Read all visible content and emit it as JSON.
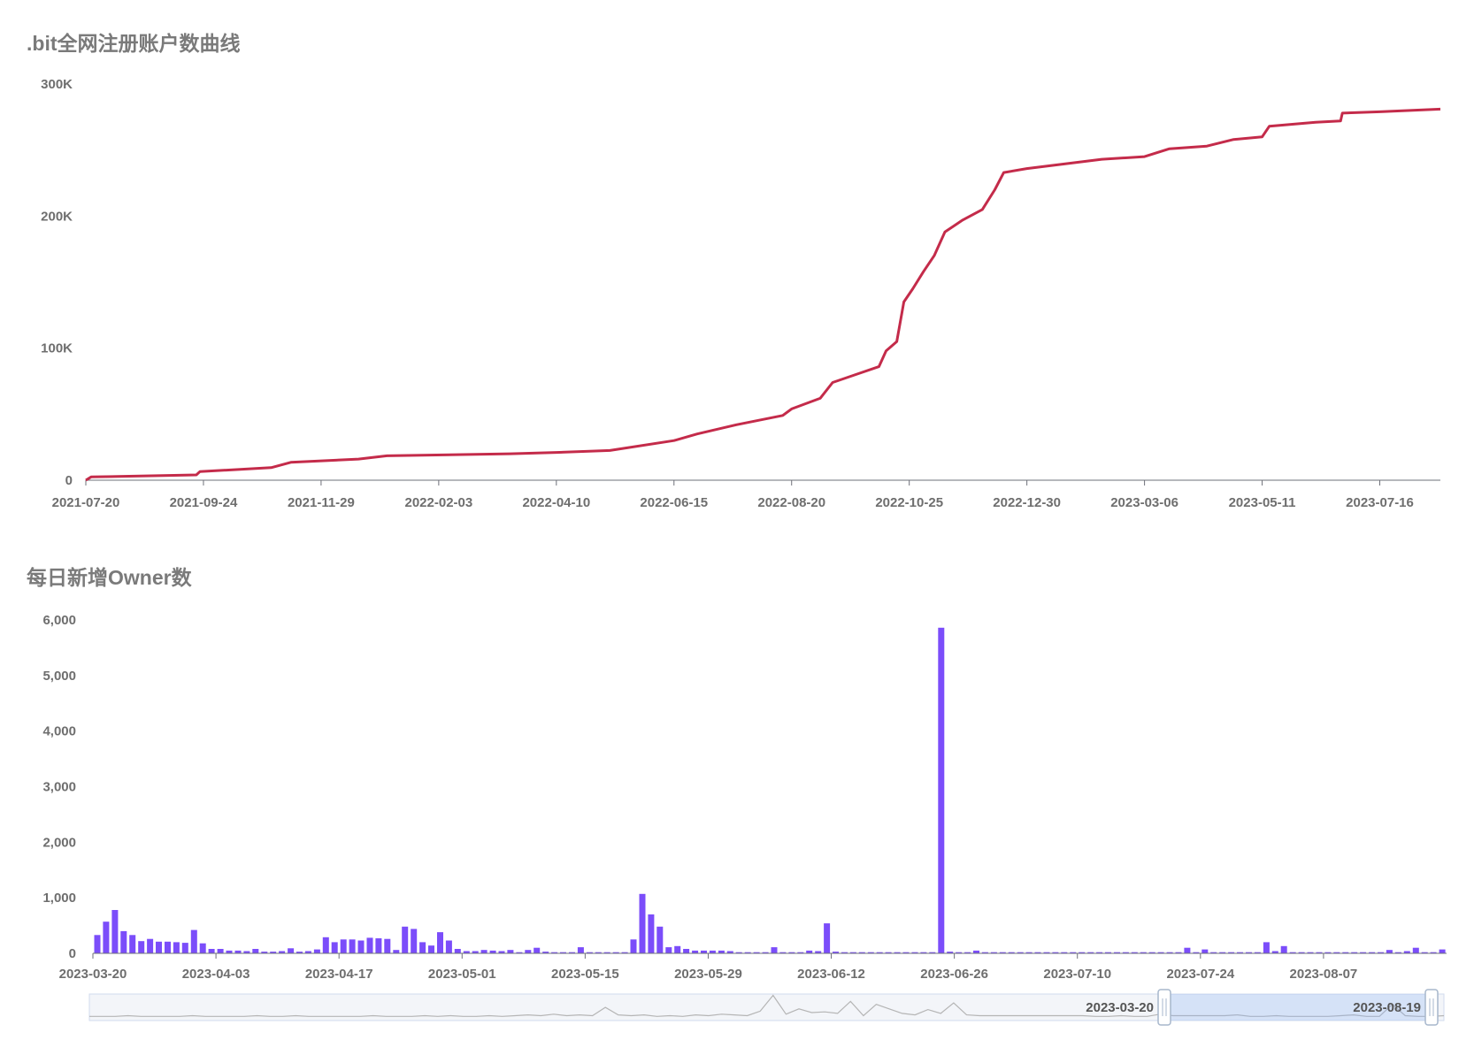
{
  "chart_data": [
    {
      "type": "line",
      "title": ".bit全网注册账户数曲线",
      "color": "#c42b4a",
      "ylim": [
        0,
        300000
      ],
      "y_ticks": [
        0,
        100000,
        200000,
        300000
      ],
      "y_tick_labels": [
        "0",
        "100K",
        "200K",
        "300K"
      ],
      "x_range": [
        "2021-07-20",
        "2023-08-19"
      ],
      "x_tick_labels": [
        "2021-07-20",
        "2021-09-24",
        "2021-11-29",
        "2022-02-03",
        "2022-04-10",
        "2022-06-15",
        "2022-08-20",
        "2022-10-25",
        "2022-12-30",
        "2023-03-06",
        "2023-05-11",
        "2023-07-16"
      ],
      "grid": false,
      "points": [
        {
          "x": "2021-07-20",
          "y": 0
        },
        {
          "x": "2021-07-23",
          "y": 2500
        },
        {
          "x": "2021-09-20",
          "y": 4000
        },
        {
          "x": "2021-09-22",
          "y": 6500
        },
        {
          "x": "2021-11-01",
          "y": 9500
        },
        {
          "x": "2021-11-12",
          "y": 13500
        },
        {
          "x": "2021-12-20",
          "y": 16000
        },
        {
          "x": "2022-01-05",
          "y": 18500
        },
        {
          "x": "2022-03-15",
          "y": 20000
        },
        {
          "x": "2022-04-10",
          "y": 21000
        },
        {
          "x": "2022-05-10",
          "y": 22500
        },
        {
          "x": "2022-06-15",
          "y": 30000
        },
        {
          "x": "2022-06-28",
          "y": 35000
        },
        {
          "x": "2022-07-20",
          "y": 42000
        },
        {
          "x": "2022-08-15",
          "y": 49000
        },
        {
          "x": "2022-08-20",
          "y": 54000
        },
        {
          "x": "2022-09-05",
          "y": 62000
        },
        {
          "x": "2022-09-12",
          "y": 74000
        },
        {
          "x": "2022-09-25",
          "y": 80000
        },
        {
          "x": "2022-10-08",
          "y": 86000
        },
        {
          "x": "2022-10-12",
          "y": 98000
        },
        {
          "x": "2022-10-18",
          "y": 105000
        },
        {
          "x": "2022-10-22",
          "y": 135000
        },
        {
          "x": "2022-10-27",
          "y": 145000
        },
        {
          "x": "2022-11-02",
          "y": 158000
        },
        {
          "x": "2022-11-08",
          "y": 170000
        },
        {
          "x": "2022-11-14",
          "y": 188000
        },
        {
          "x": "2022-11-24",
          "y": 197000
        },
        {
          "x": "2022-12-05",
          "y": 205000
        },
        {
          "x": "2022-12-12",
          "y": 220000
        },
        {
          "x": "2022-12-17",
          "y": 233000
        },
        {
          "x": "2022-12-30",
          "y": 236000
        },
        {
          "x": "2023-02-10",
          "y": 243000
        },
        {
          "x": "2023-03-06",
          "y": 245000
        },
        {
          "x": "2023-03-20",
          "y": 251000
        },
        {
          "x": "2023-04-10",
          "y": 253000
        },
        {
          "x": "2023-04-25",
          "y": 258000
        },
        {
          "x": "2023-05-11",
          "y": 260000
        },
        {
          "x": "2023-05-15",
          "y": 268000
        },
        {
          "x": "2023-06-10",
          "y": 271000
        },
        {
          "x": "2023-06-24",
          "y": 272000
        },
        {
          "x": "2023-06-25",
          "y": 278000
        },
        {
          "x": "2023-07-16",
          "y": 279000
        },
        {
          "x": "2023-08-19",
          "y": 281000
        }
      ]
    },
    {
      "type": "bar",
      "title": "每日新增Owner数",
      "color": "#7b4dfa",
      "ylim": [
        0,
        6000
      ],
      "y_ticks": [
        0,
        1000,
        2000,
        3000,
        4000,
        5000,
        6000
      ],
      "y_tick_labels": [
        "0",
        "1,000",
        "2,000",
        "3,000",
        "4,000",
        "5,000",
        "6,000"
      ],
      "x_start": "2023-03-20",
      "x_end": "2023-08-19",
      "x_tick_labels": [
        "2023-03-20",
        "2023-04-03",
        "2023-04-17",
        "2023-05-01",
        "2023-05-15",
        "2023-05-29",
        "2023-06-12",
        "2023-06-26",
        "2023-07-10",
        "2023-07-24",
        "2023-08-07"
      ],
      "grid": false,
      "values": [
        330,
        570,
        780,
        400,
        330,
        220,
        260,
        210,
        210,
        200,
        190,
        420,
        180,
        80,
        80,
        50,
        50,
        40,
        80,
        30,
        30,
        40,
        90,
        30,
        40,
        70,
        290,
        200,
        250,
        250,
        230,
        280,
        270,
        260,
        60,
        480,
        440,
        200,
        140,
        380,
        230,
        80,
        40,
        40,
        60,
        50,
        40,
        60,
        20,
        60,
        100,
        30,
        20,
        20,
        20,
        110,
        20,
        20,
        20,
        20,
        20,
        250,
        1070,
        700,
        480,
        110,
        130,
        80,
        50,
        50,
        50,
        50,
        40,
        20,
        20,
        20,
        20,
        110,
        20,
        20,
        20,
        50,
        40,
        540,
        30,
        20,
        20,
        20,
        20,
        20,
        20,
        20,
        20,
        20,
        20,
        20,
        5860,
        30,
        20,
        20,
        50,
        20,
        20,
        20,
        20,
        20,
        20,
        20,
        20,
        20,
        20,
        20,
        20,
        20,
        20,
        20,
        20,
        20,
        20,
        20,
        20,
        20,
        20,
        20,
        100,
        20,
        70,
        20,
        20,
        20,
        20,
        20,
        20,
        200,
        40,
        130,
        20,
        20,
        20,
        20,
        20,
        20,
        20,
        20,
        20,
        20,
        20,
        60,
        20,
        40,
        100,
        20,
        20,
        70
      ],
      "dataZoom": {
        "start_label": "2023-03-20",
        "end_label": "2023-08-19"
      }
    }
  ]
}
